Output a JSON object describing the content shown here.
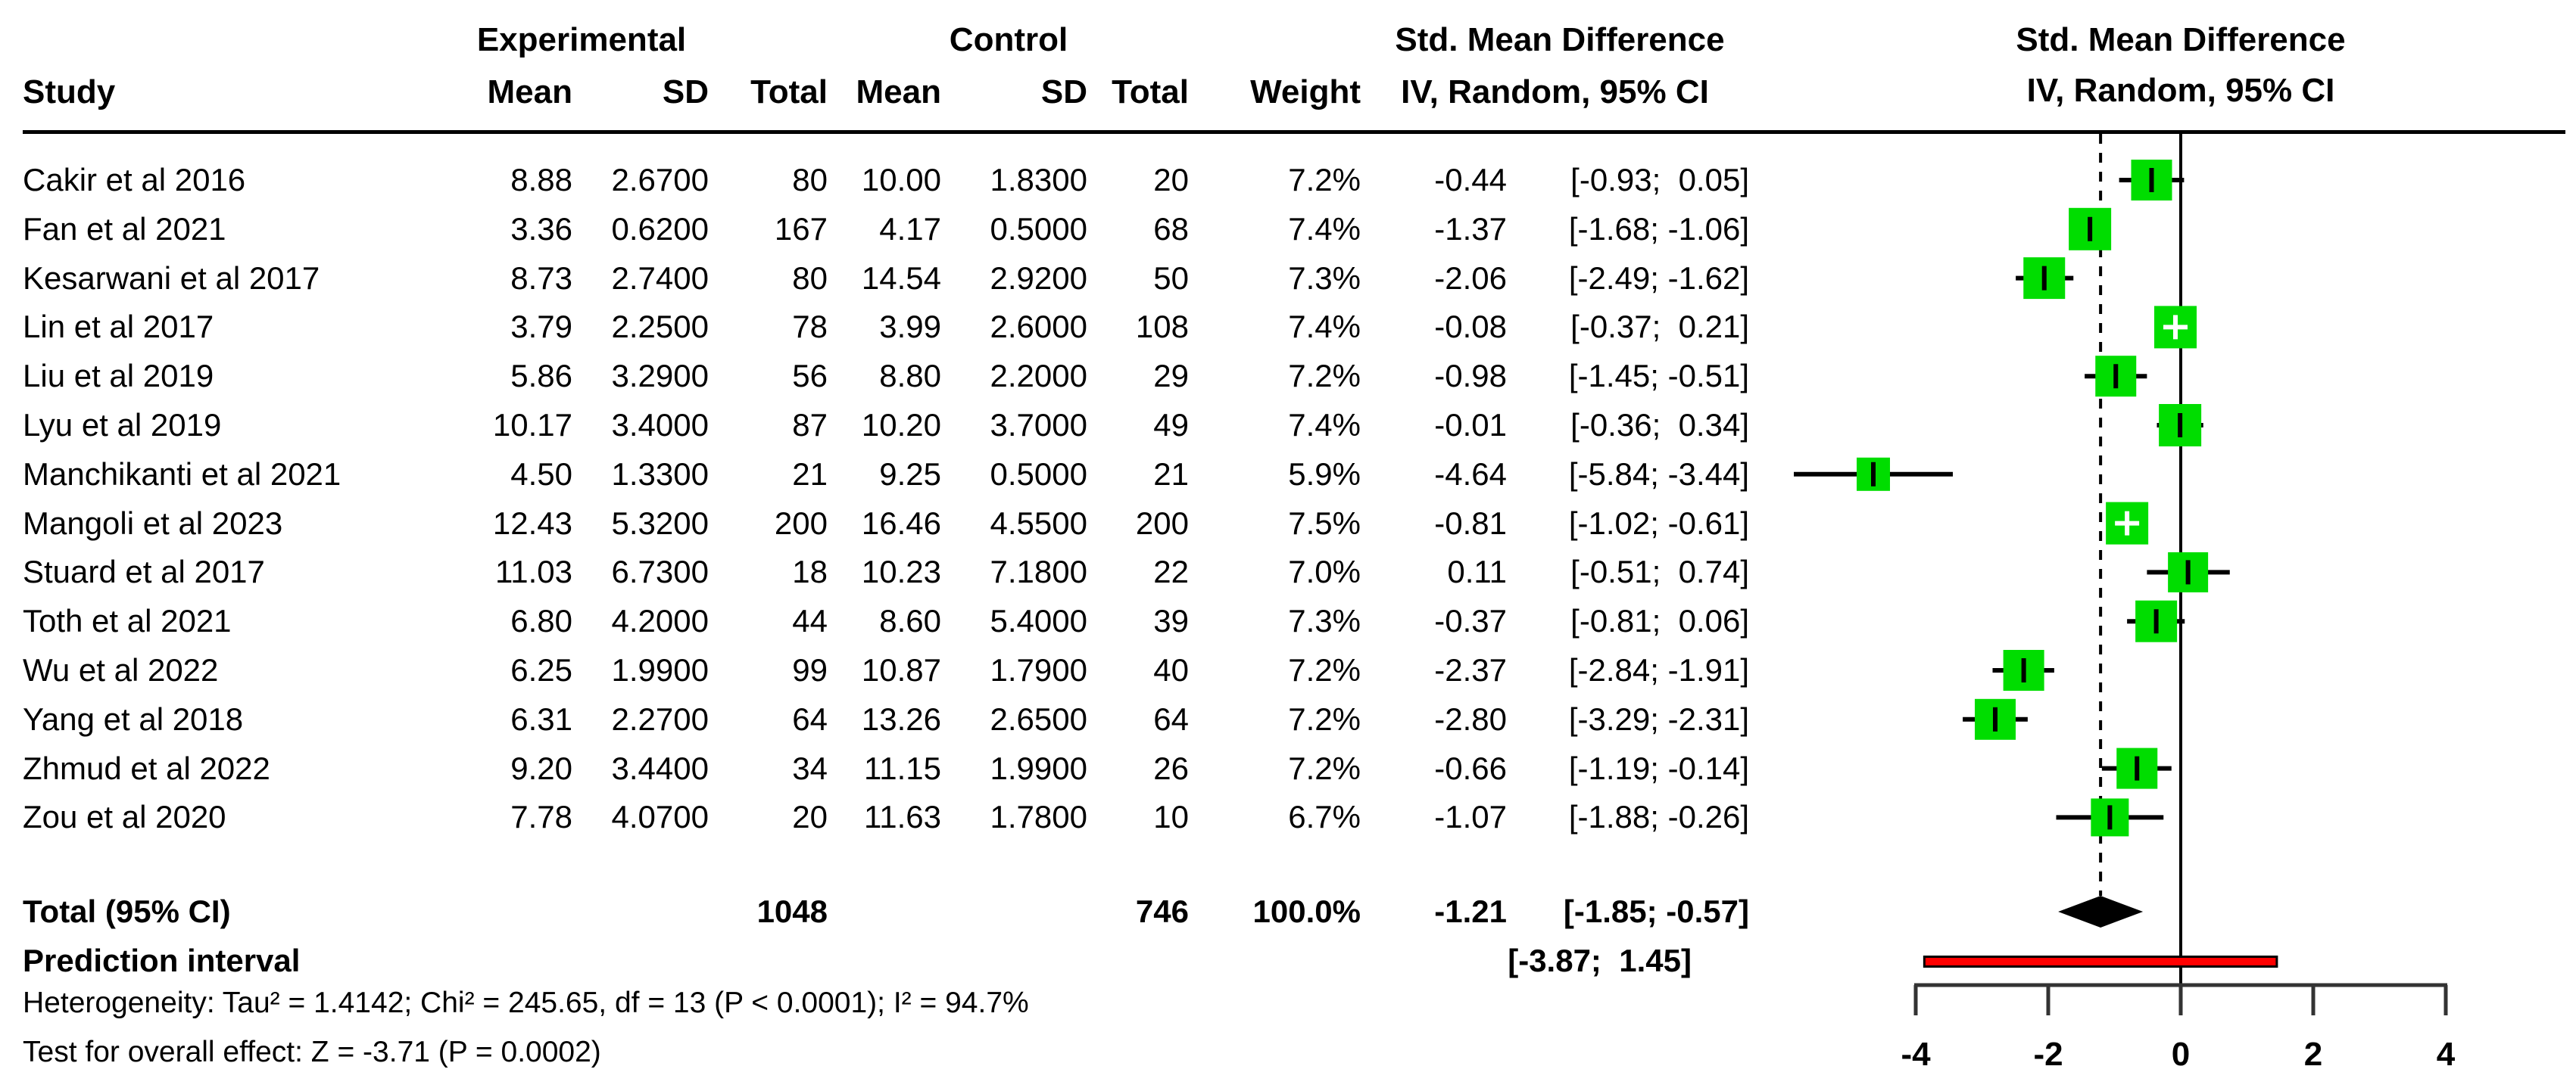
{
  "header": {
    "study": "Study",
    "experimental": "Experimental",
    "control": "Control",
    "mean": "Mean",
    "sd": "SD",
    "total": "Total",
    "weight": "Weight",
    "smd_title": "Std. Mean Difference",
    "smd_sub": "IV, Random, 95% CI"
  },
  "chart_data": {
    "type": "forest",
    "effect_measure": "Std. Mean Difference",
    "model": "IV, Random, 95% CI",
    "axis_ticks": [
      -4,
      -2,
      0,
      2,
      4
    ],
    "axis_tick_labels": [
      "-4",
      "-2",
      "0",
      "2",
      "4"
    ],
    "zero_line_x": 0,
    "pooled_estimate_line_x": -1.21,
    "colors": {
      "square": "#00dd00",
      "ci_line": "#000000",
      "diamond": "#000000",
      "prediction_fill": "#ff0000",
      "prediction_border": "#000000"
    },
    "studies": [
      {
        "name": "Cakir et al 2016",
        "exp_mean": "8.88",
        "exp_sd": "2.6700",
        "exp_total": "80",
        "ctl_mean": "10.00",
        "ctl_sd": "1.8300",
        "ctl_total": "20",
        "weight": "7.2%",
        "weight_pct": 7.2,
        "smd": "-0.44",
        "ci": "[-0.93;  0.05]",
        "est": -0.44,
        "lo": -0.93,
        "hi": 0.05
      },
      {
        "name": "Fan et al 2021",
        "exp_mean": "3.36",
        "exp_sd": "0.6200",
        "exp_total": "167",
        "ctl_mean": "4.17",
        "ctl_sd": "0.5000",
        "ctl_total": "68",
        "weight": "7.4%",
        "weight_pct": 7.4,
        "smd": "-1.37",
        "ci": "[-1.68; -1.06]",
        "est": -1.37,
        "lo": -1.68,
        "hi": -1.06
      },
      {
        "name": "Kesarwani et al 2017",
        "exp_mean": "8.73",
        "exp_sd": "2.7400",
        "exp_total": "80",
        "ctl_mean": "14.54",
        "ctl_sd": "2.9200",
        "ctl_total": "50",
        "weight": "7.3%",
        "weight_pct": 7.3,
        "smd": "-2.06",
        "ci": "[-2.49; -1.62]",
        "est": -2.06,
        "lo": -2.49,
        "hi": -1.62
      },
      {
        "name": "Lin et al 2017",
        "exp_mean": "3.79",
        "exp_sd": "2.2500",
        "exp_total": "78",
        "ctl_mean": "3.99",
        "ctl_sd": "2.6000",
        "ctl_total": "108",
        "weight": "7.4%",
        "weight_pct": 7.4,
        "smd": "-0.08",
        "ci": "[-0.37;  0.21]",
        "est": -0.08,
        "lo": -0.37,
        "hi": 0.21
      },
      {
        "name": "Liu et al 2019",
        "exp_mean": "5.86",
        "exp_sd": "3.2900",
        "exp_total": "56",
        "ctl_mean": "8.80",
        "ctl_sd": "2.2000",
        "ctl_total": "29",
        "weight": "7.2%",
        "weight_pct": 7.2,
        "smd": "-0.98",
        "ci": "[-1.45; -0.51]",
        "est": -0.98,
        "lo": -1.45,
        "hi": -0.51
      },
      {
        "name": "Lyu et al 2019",
        "exp_mean": "10.17",
        "exp_sd": "3.4000",
        "exp_total": "87",
        "ctl_mean": "10.20",
        "ctl_sd": "3.7000",
        "ctl_total": "49",
        "weight": "7.4%",
        "weight_pct": 7.4,
        "smd": "-0.01",
        "ci": "[-0.36;  0.34]",
        "est": -0.01,
        "lo": -0.36,
        "hi": 0.34
      },
      {
        "name": "Manchikanti et al 2021",
        "exp_mean": "4.50",
        "exp_sd": "1.3300",
        "exp_total": "21",
        "ctl_mean": "9.25",
        "ctl_sd": "0.5000",
        "ctl_total": "21",
        "weight": "5.9%",
        "weight_pct": 5.9,
        "smd": "-4.64",
        "ci": "[-5.84; -3.44]",
        "est": -4.64,
        "lo": -5.84,
        "hi": -3.44
      },
      {
        "name": "Mangoli et al 2023",
        "exp_mean": "12.43",
        "exp_sd": "5.3200",
        "exp_total": "200",
        "ctl_mean": "16.46",
        "ctl_sd": "4.5500",
        "ctl_total": "200",
        "weight": "7.5%",
        "weight_pct": 7.5,
        "smd": "-0.81",
        "ci": "[-1.02; -0.61]",
        "est": -0.81,
        "lo": -1.02,
        "hi": -0.61
      },
      {
        "name": "Stuard et al 2017",
        "exp_mean": "11.03",
        "exp_sd": "6.7300",
        "exp_total": "18",
        "ctl_mean": "10.23",
        "ctl_sd": "7.1800",
        "ctl_total": "22",
        "weight": "7.0%",
        "weight_pct": 7.0,
        "smd": "0.11",
        "ci": "[-0.51;  0.74]",
        "est": 0.11,
        "lo": -0.51,
        "hi": 0.74
      },
      {
        "name": "Toth et al 2021",
        "exp_mean": "6.80",
        "exp_sd": "4.2000",
        "exp_total": "44",
        "ctl_mean": "8.60",
        "ctl_sd": "5.4000",
        "ctl_total": "39",
        "weight": "7.3%",
        "weight_pct": 7.3,
        "smd": "-0.37",
        "ci": "[-0.81;  0.06]",
        "est": -0.37,
        "lo": -0.81,
        "hi": 0.06
      },
      {
        "name": "Wu et al 2022",
        "exp_mean": "6.25",
        "exp_sd": "1.9900",
        "exp_total": "99",
        "ctl_mean": "10.87",
        "ctl_sd": "1.7900",
        "ctl_total": "40",
        "weight": "7.2%",
        "weight_pct": 7.2,
        "smd": "-2.37",
        "ci": "[-2.84; -1.91]",
        "est": -2.37,
        "lo": -2.84,
        "hi": -1.91
      },
      {
        "name": "Yang et al 2018",
        "exp_mean": "6.31",
        "exp_sd": "2.2700",
        "exp_total": "64",
        "ctl_mean": "13.26",
        "ctl_sd": "2.6500",
        "ctl_total": "64",
        "weight": "7.2%",
        "weight_pct": 7.2,
        "smd": "-2.80",
        "ci": "[-3.29; -2.31]",
        "est": -2.8,
        "lo": -3.29,
        "hi": -2.31
      },
      {
        "name": "Zhmud et al 2022",
        "exp_mean": "9.20",
        "exp_sd": "3.4400",
        "exp_total": "34",
        "ctl_mean": "11.15",
        "ctl_sd": "1.9900",
        "ctl_total": "26",
        "weight": "7.2%",
        "weight_pct": 7.2,
        "smd": "-0.66",
        "ci": "[-1.19; -0.14]",
        "est": -0.66,
        "lo": -1.19,
        "hi": -0.14
      },
      {
        "name": "Zou et al 2020",
        "exp_mean": "7.78",
        "exp_sd": "4.0700",
        "exp_total": "20",
        "ctl_mean": "11.63",
        "ctl_sd": "1.7800",
        "ctl_total": "10",
        "weight": "6.7%",
        "weight_pct": 6.7,
        "smd": "-1.07",
        "ci": "[-1.88; -0.26]",
        "est": -1.07,
        "lo": -1.88,
        "hi": -0.26
      }
    ],
    "total": {
      "label": "Total (95% CI)",
      "exp_total": "1048",
      "ctl_total": "746",
      "weight": "100.0%",
      "smd": "-1.21",
      "ci": "[-1.85; -0.57]",
      "est": -1.21,
      "lo": -1.85,
      "hi": -0.57
    },
    "prediction": {
      "label": "Prediction interval",
      "ci": "[-3.87;  1.45]",
      "lo": -3.87,
      "hi": 1.45
    },
    "heterogeneity_note": "Heterogeneity: Tau² = 1.4142; Chi² = 245.65, df = 13 (P < 0.0001); I² = 94.7%",
    "overall_test_note": "Test for overall effect: Z = -3.71 (P = 0.0002)"
  }
}
